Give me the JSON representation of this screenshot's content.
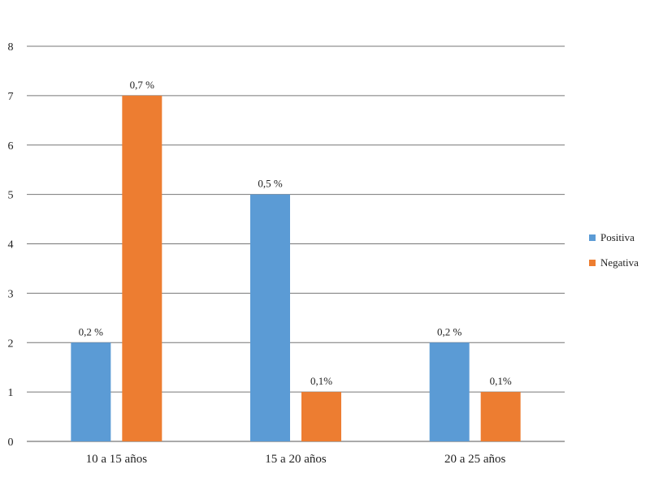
{
  "chart_data": {
    "type": "bar",
    "categories": [
      "10 a 15 años",
      "15 a 20 años",
      "20 a 25 años"
    ],
    "series": [
      {
        "name": "Positiva",
        "color": "#5b9bd5",
        "values": [
          2,
          5,
          2
        ],
        "labels": [
          "0,2 %",
          "0,5 %",
          "0,2 %"
        ]
      },
      {
        "name": "Negativa",
        "color": "#ed7d31",
        "values": [
          7,
          1,
          1
        ],
        "labels": [
          "0,7 %",
          "0,1%",
          "0,1%"
        ]
      }
    ],
    "ylim": [
      0,
      8
    ],
    "yticks": [
      "0",
      "1",
      "2",
      "3",
      "4",
      "5",
      "6",
      "7",
      "8"
    ],
    "grid": true,
    "legend_position": "right"
  }
}
